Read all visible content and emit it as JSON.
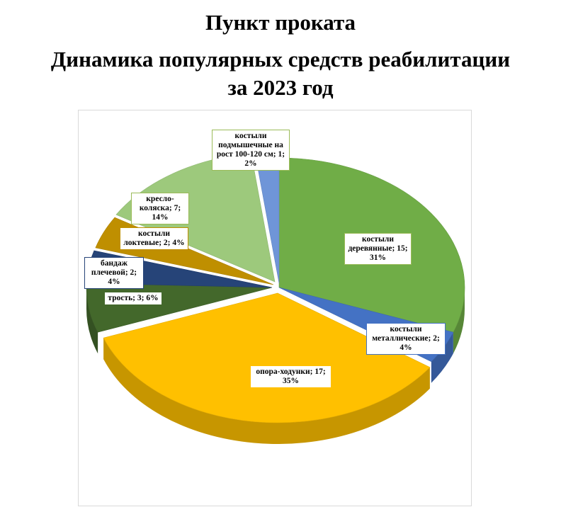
{
  "title": {
    "line1": "Пункт проката",
    "line2": "Динамика популярных средств реабилитации",
    "line3": "за 2023 год"
  },
  "chart_data": {
    "type": "pie",
    "style": "3d-exploded",
    "title": "Пункт проката Динамика популярных средств реабилитации за 2023 год",
    "slices": [
      {
        "name": "костыли деревянные",
        "value": 15,
        "percent": 31,
        "color": "#70ad47",
        "label": "костыли деревянные; 15; 31%"
      },
      {
        "name": "костыли металлические",
        "value": 2,
        "percent": 4,
        "color": "#4472c4",
        "label": "костыли металлические; 2; 4%"
      },
      {
        "name": "опора-ходунки",
        "value": 17,
        "percent": 35,
        "color": "#ffc000",
        "label": "опора-ходунки; 17; 35%"
      },
      {
        "name": "трость",
        "value": 3,
        "percent": 6,
        "color": "#43682b",
        "label": "трость; 3; 6%"
      },
      {
        "name": "бандаж плечевой",
        "value": 2,
        "percent": 4,
        "color": "#264478",
        "label": "бандаж плечевой; 2; 4%"
      },
      {
        "name": "костыли локтевые",
        "value": 2,
        "percent": 4,
        "color": "#bf8f00",
        "label": "костыли локтевые; 2; 4%"
      },
      {
        "name": "кресло-коляска",
        "value": 7,
        "percent": 14,
        "color": "#9dc97c",
        "label": "кресло-коляска; 7; 14%"
      },
      {
        "name": "костыли подмышечные на рост 100-120 см",
        "value": 1,
        "percent": 2,
        "color": "#6f95d8",
        "label": "костыли подмышечные на рост 100-120 см; 1; 2%"
      }
    ]
  }
}
